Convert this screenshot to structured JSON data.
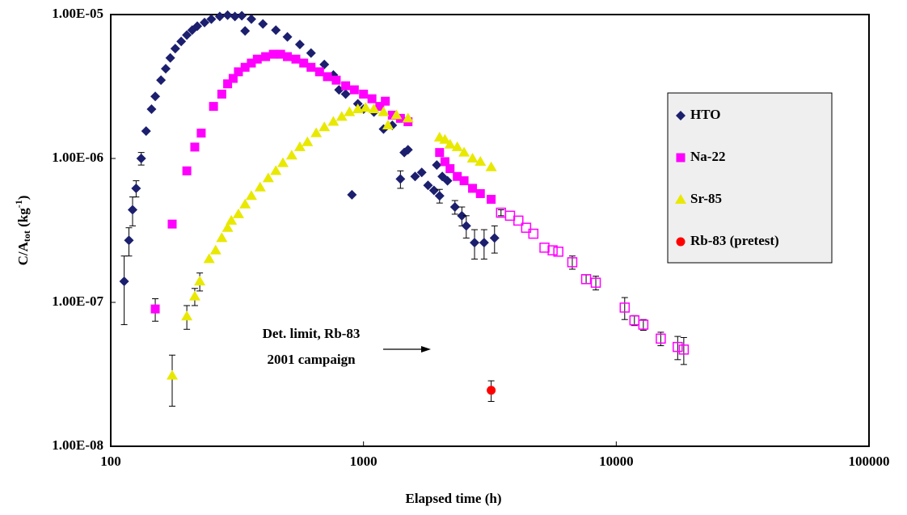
{
  "chart_data": {
    "type": "scatter",
    "y_label": [
      "C/A",
      "tot",
      " (kg",
      "-1",
      ")"
    ],
    "x_label": "Elapsed time (h)",
    "xscale": "log",
    "yscale": "log",
    "xlim": [
      100,
      100000
    ],
    "ylim": [
      1e-08,
      1e-05
    ],
    "xticks": [
      100,
      1000,
      10000,
      100000
    ],
    "yticks": [
      {
        "value": 1e-08,
        "label": "1.00E-08"
      },
      {
        "value": 1e-07,
        "label": "1.00E-07"
      },
      {
        "value": 1e-06,
        "label": "1.00E-06"
      },
      {
        "value": 1e-05,
        "label": "1.00E-05"
      }
    ],
    "grid": false,
    "legend": "right",
    "annotation": [
      "Det. limit,  Rb-83",
      "2001 campaign"
    ],
    "series": [
      {
        "name": "HTO",
        "color": "#1c1f6e",
        "marker": "diamond",
        "x": [
          113,
          118,
          122,
          126,
          132,
          138,
          145,
          150,
          158,
          165,
          172,
          180,
          190,
          200,
          210,
          220,
          235,
          250,
          270,
          290,
          310,
          330,
          340,
          360,
          400,
          450,
          500,
          560,
          620,
          700,
          760,
          800,
          850,
          900,
          950,
          1000,
          1100,
          1200,
          1300,
          1400,
          1450,
          1500,
          1600,
          1700,
          1800,
          1900,
          1950,
          2000,
          2050,
          2150,
          2300,
          2450,
          2550,
          2750,
          3000,
          3300
        ],
        "values": [
          1.4e-07,
          2.7e-07,
          4.4e-07,
          6.2e-07,
          1e-06,
          1.55e-06,
          2.2e-06,
          2.7e-06,
          3.5e-06,
          4.2e-06,
          5e-06,
          5.8e-06,
          6.5e-06,
          7.2e-06,
          7.8e-06,
          8.3e-06,
          8.8e-06,
          9.3e-06,
          9.7e-06,
          9.9e-06,
          9.7e-06,
          9.8e-06,
          7.7e-06,
          9.3e-06,
          8.6e-06,
          7.8e-06,
          7e-06,
          6.2e-06,
          5.4e-06,
          4.5e-06,
          3.8e-06,
          3e-06,
          2.8e-06,
          5.6e-07,
          2.4e-06,
          2.2e-06,
          2.1e-06,
          1.6e-06,
          1.7e-06,
          7.2e-07,
          1.1e-06,
          1.15e-06,
          7.5e-07,
          8e-07,
          6.5e-07,
          6e-07,
          9e-07,
          5.5e-07,
          7.5e-07,
          7e-07,
          4.6e-07,
          4e-07,
          3.4e-07,
          2.6e-07,
          2.6e-07,
          2.8e-07
        ],
        "errors": [
          7e-08,
          6e-08,
          1e-07,
          8e-08,
          1e-07,
          null,
          null,
          null,
          null,
          null,
          null,
          null,
          null,
          null,
          null,
          null,
          null,
          null,
          null,
          null,
          null,
          null,
          null,
          null,
          null,
          null,
          null,
          null,
          null,
          null,
          null,
          null,
          null,
          null,
          null,
          null,
          null,
          null,
          null,
          1e-07,
          null,
          null,
          null,
          null,
          null,
          null,
          null,
          6e-08,
          null,
          null,
          5e-08,
          6e-08,
          6e-08,
          6e-08,
          6e-08,
          6e-08
        ]
      },
      {
        "name": "Na-22",
        "color": "#ff00ff",
        "marker": "square",
        "x": [
          150,
          175,
          200,
          215,
          228,
          255,
          275,
          290,
          305,
          320,
          340,
          360,
          380,
          410,
          440,
          470,
          500,
          540,
          580,
          620,
          670,
          720,
          780,
          850,
          920,
          1000,
          1080,
          1160,
          1220,
          1300,
          1400,
          1500,
          2000,
          2100,
          2200,
          2350,
          2500,
          2700,
          2900,
          3200,
          3500,
          3800,
          4100,
          4400,
          4700,
          5200,
          5600,
          5900,
          6700,
          7600,
          8300,
          10800,
          11800,
          12800,
          15000,
          17500,
          18500
        ],
        "values": [
          9e-08,
          3.5e-07,
          8.2e-07,
          1.2e-06,
          1.5e-06,
          2.3e-06,
          2.8e-06,
          3.3e-06,
          3.6e-06,
          4e-06,
          4.3e-06,
          4.6e-06,
          4.9e-06,
          5.1e-06,
          5.3e-06,
          5.3e-06,
          5.1e-06,
          4.9e-06,
          4.6e-06,
          4.3e-06,
          4e-06,
          3.7e-06,
          3.5e-06,
          3.2e-06,
          3e-06,
          2.8e-06,
          2.6e-06,
          2.3e-06,
          2.5e-06,
          2e-06,
          1.9e-06,
          1.8e-06,
          1.1e-06,
          9.5e-07,
          8.5e-07,
          7.5e-07,
          7e-07,
          6.2e-07,
          5.7e-07,
          5.2e-07,
          4.2e-07,
          4e-07,
          3.7e-07,
          3.3e-07,
          3e-07,
          2.4e-07,
          2.3e-07,
          2.25e-07,
          1.9e-07,
          1.45e-07,
          1.37e-07,
          9.2e-08,
          7.5e-08,
          7e-08,
          5.6e-08,
          4.9e-08,
          4.7e-08
        ],
        "errors": [
          1.6e-08,
          null,
          null,
          null,
          null,
          null,
          null,
          null,
          null,
          null,
          null,
          null,
          null,
          null,
          null,
          null,
          null,
          null,
          null,
          null,
          null,
          null,
          null,
          null,
          null,
          null,
          null,
          null,
          null,
          null,
          null,
          null,
          null,
          null,
          null,
          null,
          null,
          null,
          null,
          null,
          2e-08,
          null,
          null,
          null,
          null,
          null,
          null,
          null,
          2e-08,
          1e-08,
          1.5e-08,
          1.6e-08,
          6e-09,
          6e-09,
          6e-09,
          9e-09,
          1e-08
        ],
        "open_markers": [
          false,
          false,
          false,
          false,
          false,
          false,
          false,
          false,
          false,
          false,
          false,
          false,
          false,
          false,
          false,
          false,
          false,
          false,
          false,
          false,
          false,
          false,
          false,
          false,
          false,
          false,
          false,
          false,
          false,
          false,
          false,
          false,
          false,
          false,
          false,
          false,
          false,
          false,
          false,
          false,
          true,
          true,
          true,
          true,
          true,
          true,
          true,
          true,
          true,
          true,
          true,
          true,
          true,
          true,
          true,
          true,
          true
        ]
      },
      {
        "name": "Sr-85",
        "color": "#e8e800",
        "marker": "triangle",
        "x": [
          175,
          200,
          215,
          225,
          245,
          260,
          275,
          290,
          300,
          320,
          340,
          360,
          390,
          420,
          450,
          480,
          520,
          560,
          600,
          650,
          700,
          760,
          820,
          880,
          950,
          1020,
          1100,
          1200,
          1250,
          1350,
          1500,
          2000,
          2100,
          2200,
          2350,
          2500,
          2700,
          2900,
          3200
        ],
        "values": [
          3.1e-08,
          8e-08,
          1.1e-07,
          1.4e-07,
          2e-07,
          2.3e-07,
          2.8e-07,
          3.3e-07,
          3.7e-07,
          4.1e-07,
          4.8e-07,
          5.5e-07,
          6.3e-07,
          7.3e-07,
          8.2e-07,
          9.3e-07,
          1.05e-06,
          1.2e-06,
          1.3e-06,
          1.5e-06,
          1.65e-06,
          1.8e-06,
          1.95e-06,
          2.1e-06,
          2.2e-06,
          2.25e-06,
          2.2e-06,
          2.1e-06,
          1.7e-06,
          2e-06,
          1.9e-06,
          1.4e-06,
          1.35e-06,
          1.25e-06,
          1.2e-06,
          1.1e-06,
          1e-06,
          9.5e-07,
          8.7e-07
        ],
        "errors": [
          1.2e-08,
          1.5e-08,
          1.5e-08,
          2e-08,
          null,
          null,
          null,
          null,
          null,
          null,
          null,
          null,
          null,
          null,
          null,
          null,
          null,
          null,
          null,
          null,
          null,
          null,
          null,
          null,
          null,
          null,
          null,
          null,
          null,
          null,
          null,
          null,
          null,
          null,
          null,
          null,
          null,
          null,
          null
        ]
      },
      {
        "name": "Rb-83 (pretest)",
        "color": "#ff0000",
        "marker": "circle",
        "x": [
          3200
        ],
        "values": [
          2.45e-08
        ],
        "errors": [
          4e-09
        ]
      }
    ]
  }
}
